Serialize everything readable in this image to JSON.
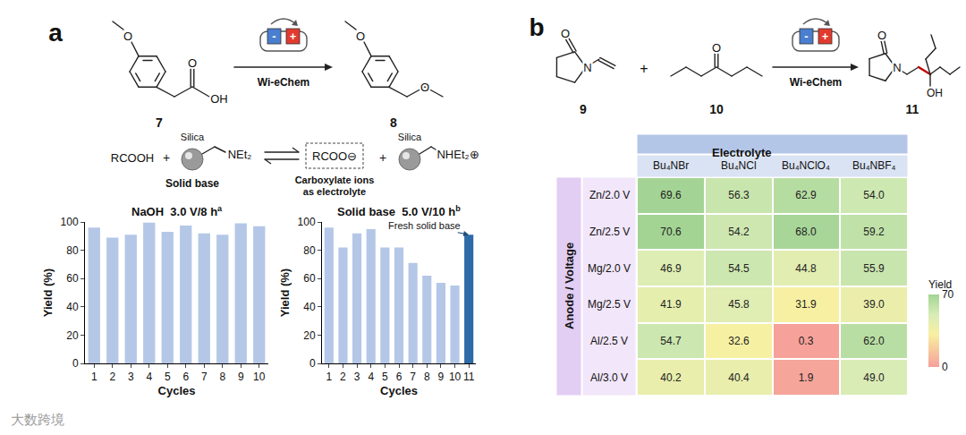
{
  "panel_labels": [
    "a",
    "b"
  ],
  "watermark": "大数跨境",
  "scheme_a": {
    "reactant": {
      "label": "7",
      "atoms": [
        "O",
        "O",
        "OH"
      ]
    },
    "product": {
      "label": "8",
      "atoms": [
        "O",
        "O"
      ]
    },
    "reagent": "Wi-eChem",
    "electrodes": [
      "-",
      "+"
    ],
    "equilibrium": {
      "acid": "RCOOH",
      "plus": "+",
      "support": "Silica",
      "base_group": "NEt₂",
      "base_name": "Solid base",
      "anion": "RCOO⊖",
      "anion_note": [
        "Carboxylate ions",
        "as electrolyte"
      ],
      "cation_group": "NHEt₂⊕"
    }
  },
  "scheme_b": {
    "reactants": [
      {
        "label": "9",
        "atoms": [
          "O",
          "N"
        ]
      },
      {
        "label": "10",
        "atoms": [
          "O"
        ]
      }
    ],
    "plus": "+",
    "product": {
      "label": "11",
      "atoms": [
        "O",
        "N",
        "OH"
      ]
    },
    "reagent": "Wi-eChem",
    "electrodes": [
      "-",
      "+"
    ]
  },
  "chart_data": [
    {
      "type": "bar",
      "title": "NaOH  3.0 V/8 h",
      "footnote_mark": "a",
      "categories": [
        "1",
        "2",
        "3",
        "4",
        "5",
        "6",
        "7",
        "8",
        "9",
        "10"
      ],
      "values": [
        96,
        89,
        91,
        99.5,
        93,
        97.5,
        92,
        91,
        99,
        97
      ],
      "color": "#b4c7e7",
      "xlabel": "Cycles",
      "ylabel": "Yield (%)",
      "ylim": [
        0,
        100
      ],
      "yticks": [
        0,
        20,
        40,
        60,
        80,
        100
      ],
      "grid": false
    },
    {
      "type": "bar",
      "title": "Solid base  5.0 V/10 h",
      "footnote_mark": "b",
      "categories": [
        "1",
        "2",
        "3",
        "4",
        "5",
        "6",
        "7",
        "8",
        "9",
        "10",
        "11"
      ],
      "values": [
        96,
        82,
        92,
        95,
        82,
        82,
        71,
        62,
        57,
        55,
        91
      ],
      "colors": [
        "#b4c7e7",
        "#b4c7e7",
        "#b4c7e7",
        "#b4c7e7",
        "#b4c7e7",
        "#b4c7e7",
        "#b4c7e7",
        "#b4c7e7",
        "#b4c7e7",
        "#b4c7e7",
        "#2e6aa6"
      ],
      "annotations": [
        {
          "text": "Fresh solid base",
          "category": "11"
        }
      ],
      "xlabel": "Cycles",
      "ylabel": "Yield (%)",
      "ylim": [
        0,
        100
      ],
      "yticks": [
        0,
        20,
        40,
        60,
        80,
        100
      ],
      "grid": false
    },
    {
      "type": "heatmap",
      "x_header": "Electrolyte",
      "y_header": "Anode / Voltage",
      "columns": [
        "Bu₄NBr",
        "Bu₄NCl",
        "Bu₄NClO₄",
        "Bu₄NBF₄"
      ],
      "rows": [
        "Zn/2.0 V",
        "Zn/2.5 V",
        "Mg/2.0 V",
        "Mg/2.5 V",
        "Al/2.5 V",
        "Al/3.0 V"
      ],
      "cells": [
        [
          69.6,
          56.3,
          62.9,
          54.0
        ],
        [
          70.6,
          54.2,
          68.0,
          59.2
        ],
        [
          46.9,
          54.5,
          44.8,
          55.9
        ],
        [
          41.9,
          45.8,
          31.9,
          39.0
        ],
        [
          54.7,
          32.6,
          0.3,
          62.0
        ],
        [
          40.2,
          40.4,
          1.9,
          49.0
        ]
      ],
      "value_labels": [
        [
          "69.6",
          "56.3",
          "62.9",
          "54.0"
        ],
        [
          "70.6",
          "54.2",
          "68.0",
          "59.2"
        ],
        [
          "46.9",
          "54.5",
          "44.8",
          "55.9"
        ],
        [
          "41.9",
          "45.8",
          "31.9",
          "39.0"
        ],
        [
          "54.7",
          "32.6",
          "0.3",
          "62.0"
        ],
        [
          "40.2",
          "40.4",
          "1.9",
          "49.0"
        ]
      ],
      "data_labels": true,
      "colorbar": {
        "title": "Yield",
        "range": [
          0,
          70
        ],
        "ticks": [
          0,
          70
        ]
      }
    }
  ]
}
